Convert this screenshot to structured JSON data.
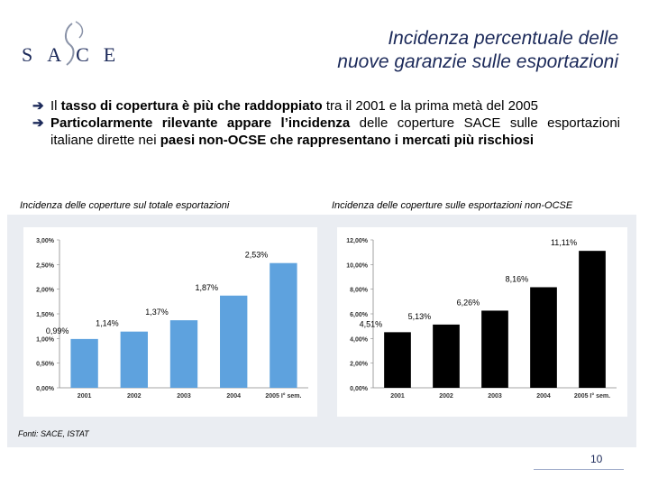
{
  "logo": {
    "text": "SACE"
  },
  "title": {
    "line1": "Incidenza percentuale delle",
    "line2": "nuove garanzie sulle esportazioni"
  },
  "bullets": [
    {
      "pre": "Il ",
      "bold": "tasso di copertura è più che raddoppiato",
      "post": " tra il 2001 e la prima metà del 2005"
    },
    {
      "pre": "",
      "bold": "Particolarmente rilevante appare l’incidenza",
      "mid": " delle coperture SACE sulle esportazioni italiane dirette nei ",
      "bold2": "paesi non-OCSE che rappresentano i mercati più rischiosi"
    }
  ],
  "captions": {
    "left": "Incidenza delle coperture sul totale esportazioni",
    "right": "Incidenza delle coperture sulle esportazioni non-OCSE"
  },
  "source": "Fonti: SACE, ISTAT",
  "page_number": "10",
  "colors": {
    "title": "#1c2a5a",
    "bar_blue": "#5ea2de",
    "bar_black": "#000000"
  },
  "chart_data": [
    {
      "type": "bar",
      "title": "Incidenza delle coperture sul totale esportazioni",
      "categories": [
        "2001",
        "2002",
        "2003",
        "2004",
        "2005 I° sem."
      ],
      "values": [
        0.99,
        1.14,
        1.37,
        1.87,
        2.53
      ],
      "value_labels": [
        "0,99%",
        "1,14%",
        "1,37%",
        "1,87%",
        "2,53%"
      ],
      "yticks": [
        "0,00%",
        "0,50%",
        "1,00%",
        "1,50%",
        "2,00%",
        "2,50%",
        "3,00%"
      ],
      "ylim": [
        0,
        3
      ],
      "color": "#5ea2de"
    },
    {
      "type": "bar",
      "title": "Incidenza delle coperture sulle esportazioni non-OCSE",
      "categories": [
        "2001",
        "2002",
        "2003",
        "2004",
        "2005 I° sem."
      ],
      "values": [
        4.51,
        5.13,
        6.26,
        8.16,
        11.11
      ],
      "value_labels": [
        "4,51%",
        "5,13%",
        "6,26%",
        "8,16%",
        "11,11%"
      ],
      "yticks": [
        "0,00%",
        "2,00%",
        "4,00%",
        "6,00%",
        "8,00%",
        "10,00%",
        "12,00%"
      ],
      "ylim": [
        0,
        12
      ],
      "color": "#000000"
    }
  ]
}
